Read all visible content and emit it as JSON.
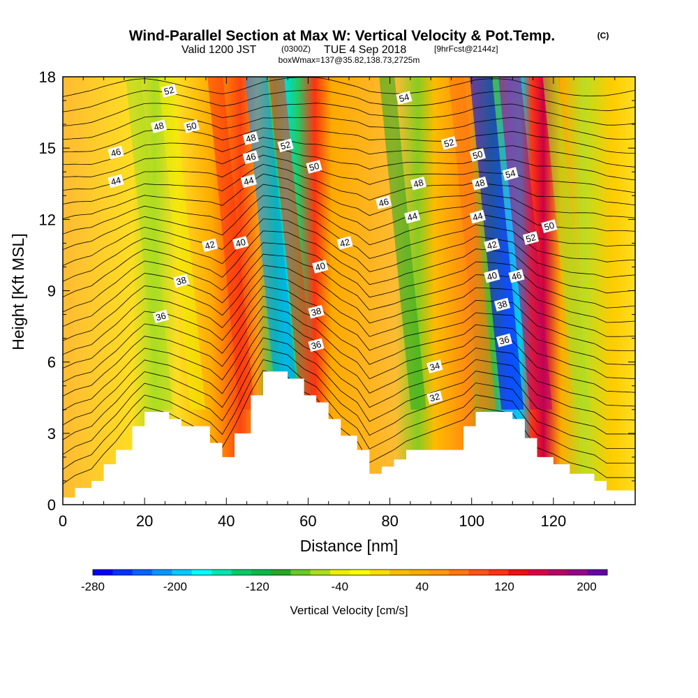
{
  "header": {
    "title_main": "Wind-Parallel Section at Max W: Vertical Velocity & Pot.Temp.",
    "title_unit": "(C)",
    "valid_prefix": "Valid 1200 JST",
    "valid_utc": "(0300Z)",
    "valid_date": "TUE 4 Sep 2018",
    "valid_fcst": "[9hrFcst@2144z]",
    "boxinfo": "boxWmax=137@35.82,138.73,2725m"
  },
  "colorbar": {
    "title": "Vertical Velocity [cm/s]",
    "labels": [
      "-280",
      "-200",
      "-120",
      "-40",
      "40",
      "120",
      "200"
    ],
    "colors": [
      "#0000ff",
      "#0033ff",
      "#0066ff",
      "#0099ff",
      "#00ccff",
      "#00ffff",
      "#00e6b0",
      "#00cc66",
      "#00bb44",
      "#22aa22",
      "#66cc22",
      "#aadd22",
      "#eeee00",
      "#ffff00",
      "#ffdd00",
      "#ffbb00",
      "#ffaa00",
      "#ff9911",
      "#ff7711",
      "#ff5511",
      "#ff3311",
      "#ee1111",
      "#dd0044",
      "#bb0066",
      "#990088",
      "#6600aa"
    ]
  },
  "chart_data": {
    "type": "heatmap",
    "title": "Wind-Parallel Section at Max W: Vertical Velocity & Pot.Temp.",
    "xlabel": "Distance [nm]",
    "ylabel": "Height [Kft MSL]",
    "xlim": [
      0,
      140
    ],
    "ylim": [
      0,
      18
    ],
    "x_ticks": [
      "0",
      "20",
      "40",
      "60",
      "80",
      "100",
      "120"
    ],
    "y_ticks": [
      "0",
      "3",
      "6",
      "9",
      "12",
      "15",
      "18"
    ],
    "fill_variable": "Vertical Velocity [cm/s]",
    "fill_range": [
      -280,
      220
    ],
    "updraft_max_cm_s": 137,
    "velocity_bands": [
      {
        "x_center": 25,
        "w": -60
      },
      {
        "x_center": 33,
        "w": -40
      },
      {
        "x_center": 45,
        "w": 120
      },
      {
        "x_center": 55,
        "w": -220
      },
      {
        "x_center": 60,
        "w": 110
      },
      {
        "x_center": 87,
        "w": -100
      },
      {
        "x_center": 104,
        "w": 70
      },
      {
        "x_center": 110,
        "w": -270
      },
      {
        "x_center": 117,
        "w": 180
      },
      {
        "x_center": 127,
        "w": -50
      }
    ],
    "terrain": [
      {
        "x": 0,
        "y": 0.3
      },
      {
        "x": 3,
        "y": 0.7
      },
      {
        "x": 7,
        "y": 1.0
      },
      {
        "x": 10,
        "y": 1.7
      },
      {
        "x": 13,
        "y": 2.3
      },
      {
        "x": 17,
        "y": 3.3
      },
      {
        "x": 20,
        "y": 3.9
      },
      {
        "x": 26,
        "y": 3.6
      },
      {
        "x": 29,
        "y": 3.3
      },
      {
        "x": 36,
        "y": 2.6
      },
      {
        "x": 39,
        "y": 2.0
      },
      {
        "x": 42,
        "y": 3.0
      },
      {
        "x": 46,
        "y": 4.6
      },
      {
        "x": 49,
        "y": 5.6
      },
      {
        "x": 55,
        "y": 5.3
      },
      {
        "x": 59,
        "y": 4.6
      },
      {
        "x": 62,
        "y": 4.3
      },
      {
        "x": 65,
        "y": 3.6
      },
      {
        "x": 68,
        "y": 2.9
      },
      {
        "x": 72,
        "y": 2.3
      },
      {
        "x": 75,
        "y": 1.3
      },
      {
        "x": 78,
        "y": 1.6
      },
      {
        "x": 81,
        "y": 1.9
      },
      {
        "x": 84,
        "y": 2.3
      },
      {
        "x": 98,
        "y": 3.3
      },
      {
        "x": 101,
        "y": 3.9
      },
      {
        "x": 110,
        "y": 3.6
      },
      {
        "x": 113,
        "y": 2.8
      },
      {
        "x": 116,
        "y": 2.0
      },
      {
        "x": 120,
        "y": 1.7
      },
      {
        "x": 124,
        "y": 1.3
      },
      {
        "x": 130,
        "y": 1.0
      },
      {
        "x": 133,
        "y": 0.6
      },
      {
        "x": 140,
        "y": 0.6
      }
    ],
    "theta_contours": [
      "32",
      "34",
      "36",
      "38",
      "40",
      "42",
      "44",
      "46",
      "48",
      "50",
      "52",
      "54"
    ],
    "contour_labels": [
      {
        "text": "52",
        "x": 26,
        "y": 17.4
      },
      {
        "text": "48",
        "x": 23.5,
        "y": 15.9
      },
      {
        "text": "50",
        "x": 31.5,
        "y": 15.9
      },
      {
        "text": "46",
        "x": 13,
        "y": 14.8
      },
      {
        "text": "44",
        "x": 13,
        "y": 13.6
      },
      {
        "text": "48",
        "x": 46,
        "y": 15.4
      },
      {
        "text": "52",
        "x": 54.5,
        "y": 15.1
      },
      {
        "text": "46",
        "x": 46,
        "y": 14.6
      },
      {
        "text": "44",
        "x": 45.5,
        "y": 13.6
      },
      {
        "text": "50",
        "x": 61.5,
        "y": 14.2
      },
      {
        "text": "42",
        "x": 36,
        "y": 10.9
      },
      {
        "text": "40",
        "x": 43.5,
        "y": 11.0
      },
      {
        "text": "38",
        "x": 29,
        "y": 9.4
      },
      {
        "text": "36",
        "x": 24,
        "y": 7.9
      },
      {
        "text": "54",
        "x": 83.5,
        "y": 17.1
      },
      {
        "text": "52",
        "x": 94.5,
        "y": 15.2
      },
      {
        "text": "50",
        "x": 101.5,
        "y": 14.7
      },
      {
        "text": "54",
        "x": 109.5,
        "y": 13.9
      },
      {
        "text": "48",
        "x": 87,
        "y": 13.5
      },
      {
        "text": "48",
        "x": 102,
        "y": 13.5
      },
      {
        "text": "46",
        "x": 78.5,
        "y": 12.7
      },
      {
        "text": "44",
        "x": 85.5,
        "y": 12.1
      },
      {
        "text": "44",
        "x": 101.5,
        "y": 12.1
      },
      {
        "text": "42",
        "x": 69,
        "y": 11.0
      },
      {
        "text": "42",
        "x": 105,
        "y": 10.9
      },
      {
        "text": "52",
        "x": 114.5,
        "y": 11.2
      },
      {
        "text": "50",
        "x": 119,
        "y": 11.7
      },
      {
        "text": "40",
        "x": 63,
        "y": 10.0
      },
      {
        "text": "40",
        "x": 105,
        "y": 9.6
      },
      {
        "text": "46",
        "x": 111,
        "y": 9.6
      },
      {
        "text": "38",
        "x": 62,
        "y": 8.1
      },
      {
        "text": "38",
        "x": 107.5,
        "y": 8.4
      },
      {
        "text": "36",
        "x": 62,
        "y": 6.7
      },
      {
        "text": "36",
        "x": 108,
        "y": 6.9
      },
      {
        "text": "34",
        "x": 91,
        "y": 5.8
      },
      {
        "text": "32",
        "x": 91,
        "y": 4.5
      }
    ]
  }
}
